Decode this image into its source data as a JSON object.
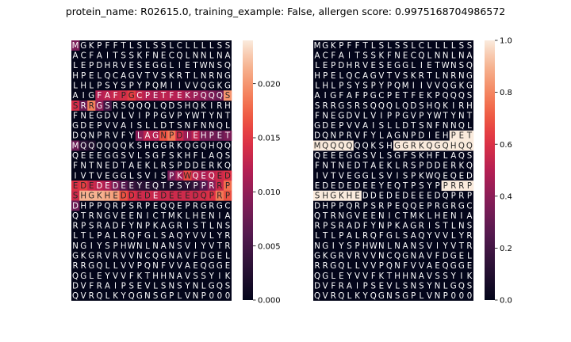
{
  "chart_data": {
    "type": "heatmap",
    "title": "protein_name: R02615.0, training_example: False, allergen score: 0.9975168704986572",
    "colormap": "rocket",
    "sequence_rows": [
      "MGKPFFTLSLSSLCLLLLSS",
      "ACFAITSSKFNECQLNNLNA",
      "LEPDHRVESEGGLIETWNSQ",
      "HPELQCAGVTVSKRTLNRNG",
      "LHLPSYSPYPQMIIVVQGKG",
      "AIGFAFPGCPETFEKPQQQS",
      "SRRGSRSQQQLQDSHQKIRH",
      "FNEGDVLVIPPGVPYWTYNT",
      "GDEPVVAISLLDTSNFNNQL",
      "DQNPRVFYLAGNPDIEHPET",
      "MQQQQQQKSHGGRKQGQHQQ",
      "QEEEGGSVLSGFSKHFLAQS",
      "FNTNEDTAEKLRSPDDERKQ",
      "IVTVEGGLSVISPKWQEQED",
      "EDEDEDEEYEQTPSYPPRRP",
      "SHGKHEDDEDEDEEEDQPRP",
      "DHPPQRPSRPEQQEPRGRGC",
      "QTRNGVEENICTMKLHENIA",
      "RPSRADFYNPKAGRISTLNS",
      "LTLPALRQFGLSAQYVVLYR",
      "NGIYSPHWNLNANSVIYVTR",
      "GKGRVRVVNCQGNAVFDGEL",
      "RRGQLLVVPQNFVVAEQGGE",
      "QGLEYVVFKTHHNAVSSYIK",
      "DVFRAIPSEVLSNSYNLGQS",
      "QVRQLKYQGNSGPLVNP000"
    ],
    "left_panel": {
      "colorbar_ticks": [
        0.0,
        0.005,
        0.01,
        0.015,
        0.02
      ],
      "colorbar_tick_labels": [
        "0.000",
        "0.005",
        "0.010",
        "0.015",
        "0.020"
      ],
      "vmin": 0.0,
      "vmax": 0.024,
      "highlights": [
        {
          "row": 0,
          "col": 0,
          "value": 0.0085
        },
        {
          "row": 5,
          "col": 3,
          "value": 0.012
        },
        {
          "row": 5,
          "col": 4,
          "value": 0.0125
        },
        {
          "row": 5,
          "col": 5,
          "value": 0.0132
        },
        {
          "row": 5,
          "col": 6,
          "value": 0.014
        },
        {
          "row": 5,
          "col": 7,
          "value": 0.0155
        },
        {
          "row": 5,
          "col": 8,
          "value": 0.013
        },
        {
          "row": 5,
          "col": 9,
          "value": 0.012
        },
        {
          "row": 5,
          "col": 10,
          "value": 0.0115
        },
        {
          "row": 5,
          "col": 11,
          "value": 0.0125
        },
        {
          "row": 5,
          "col": 12,
          "value": 0.0122
        },
        {
          "row": 5,
          "col": 13,
          "value": 0.012
        },
        {
          "row": 5,
          "col": 14,
          "value": 0.011
        },
        {
          "row": 5,
          "col": 15,
          "value": 0.0105
        },
        {
          "row": 5,
          "col": 16,
          "value": 0.0095
        },
        {
          "row": 5,
          "col": 17,
          "value": 0.0085
        },
        {
          "row": 5,
          "col": 18,
          "value": 0.0075
        },
        {
          "row": 5,
          "col": 19,
          "value": 0.02
        },
        {
          "row": 6,
          "col": 0,
          "value": 0.014
        },
        {
          "row": 6,
          "col": 1,
          "value": 0.0075
        },
        {
          "row": 6,
          "col": 2,
          "value": 0.019
        },
        {
          "row": 6,
          "col": 3,
          "value": 0.0095
        },
        {
          "row": 6,
          "col": 4,
          "value": 0.0045
        },
        {
          "row": 9,
          "col": 8,
          "value": 0.0095
        },
        {
          "row": 9,
          "col": 9,
          "value": 0.0125
        },
        {
          "row": 9,
          "col": 10,
          "value": 0.012
        },
        {
          "row": 9,
          "col": 11,
          "value": 0.0165
        },
        {
          "row": 9,
          "col": 12,
          "value": 0.0185
        },
        {
          "row": 9,
          "col": 13,
          "value": 0.0135
        },
        {
          "row": 9,
          "col": 14,
          "value": 0.0105
        },
        {
          "row": 9,
          "col": 15,
          "value": 0.0125
        },
        {
          "row": 9,
          "col": 16,
          "value": 0.0085
        },
        {
          "row": 9,
          "col": 17,
          "value": 0.008
        },
        {
          "row": 9,
          "col": 18,
          "value": 0.0075
        },
        {
          "row": 9,
          "col": 19,
          "value": 0.0085
        },
        {
          "row": 10,
          "col": 0,
          "value": 0.0075
        },
        {
          "row": 10,
          "col": 1,
          "value": 0.003
        },
        {
          "row": 10,
          "col": 2,
          "value": 0.002
        },
        {
          "row": 13,
          "col": 12,
          "value": 0.0085
        },
        {
          "row": 13,
          "col": 13,
          "value": 0.011
        },
        {
          "row": 13,
          "col": 14,
          "value": 0.016
        },
        {
          "row": 13,
          "col": 15,
          "value": 0.0125
        },
        {
          "row": 13,
          "col": 16,
          "value": 0.0115
        },
        {
          "row": 13,
          "col": 17,
          "value": 0.0125
        },
        {
          "row": 13,
          "col": 18,
          "value": 0.0135
        },
        {
          "row": 13,
          "col": 19,
          "value": 0.0145
        },
        {
          "row": 14,
          "col": 0,
          "value": 0.0145
        },
        {
          "row": 14,
          "col": 1,
          "value": 0.0155
        },
        {
          "row": 14,
          "col": 2,
          "value": 0.0135
        },
        {
          "row": 14,
          "col": 3,
          "value": 0.0125
        },
        {
          "row": 14,
          "col": 4,
          "value": 0.0115
        },
        {
          "row": 14,
          "col": 5,
          "value": 0.0085
        },
        {
          "row": 14,
          "col": 6,
          "value": 0.006
        },
        {
          "row": 14,
          "col": 7,
          "value": 0.004
        },
        {
          "row": 14,
          "col": 8,
          "value": 0.003
        },
        {
          "row": 14,
          "col": 9,
          "value": 0.0025
        },
        {
          "row": 14,
          "col": 10,
          "value": 0.002
        },
        {
          "row": 14,
          "col": 11,
          "value": 0.0015
        },
        {
          "row": 14,
          "col": 12,
          "value": 0.0015
        },
        {
          "row": 14,
          "col": 13,
          "value": 0.002
        },
        {
          "row": 14,
          "col": 14,
          "value": 0.0025
        },
        {
          "row": 14,
          "col": 15,
          "value": 0.0035
        },
        {
          "row": 14,
          "col": 16,
          "value": 0.006
        },
        {
          "row": 14,
          "col": 17,
          "value": 0.0095
        },
        {
          "row": 14,
          "col": 18,
          "value": 0.0135
        },
        {
          "row": 14,
          "col": 19,
          "value": 0.018
        },
        {
          "row": 15,
          "col": 0,
          "value": 0.0135
        },
        {
          "row": 15,
          "col": 1,
          "value": 0.0215
        },
        {
          "row": 15,
          "col": 2,
          "value": 0.0215
        },
        {
          "row": 15,
          "col": 3,
          "value": 0.0215
        },
        {
          "row": 15,
          "col": 4,
          "value": 0.021
        },
        {
          "row": 15,
          "col": 5,
          "value": 0.0205
        },
        {
          "row": 15,
          "col": 6,
          "value": 0.0165
        },
        {
          "row": 15,
          "col": 7,
          "value": 0.0145
        },
        {
          "row": 15,
          "col": 8,
          "value": 0.0135
        },
        {
          "row": 15,
          "col": 9,
          "value": 0.0135
        },
        {
          "row": 15,
          "col": 10,
          "value": 0.013
        },
        {
          "row": 15,
          "col": 11,
          "value": 0.0135
        },
        {
          "row": 15,
          "col": 12,
          "value": 0.0135
        },
        {
          "row": 15,
          "col": 13,
          "value": 0.0135
        },
        {
          "row": 15,
          "col": 14,
          "value": 0.0135
        },
        {
          "row": 15,
          "col": 15,
          "value": 0.0135
        },
        {
          "row": 15,
          "col": 16,
          "value": 0.014
        },
        {
          "row": 15,
          "col": 17,
          "value": 0.0145
        },
        {
          "row": 15,
          "col": 18,
          "value": 0.0185
        },
        {
          "row": 15,
          "col": 19,
          "value": 0.0165
        },
        {
          "row": 16,
          "col": 0,
          "value": 0.0075
        }
      ]
    },
    "right_panel": {
      "colorbar_ticks": [
        0.0,
        0.2,
        0.4,
        0.6,
        0.8,
        1.0
      ],
      "colorbar_tick_labels": [
        "0.0",
        "0.2",
        "0.4",
        "0.6",
        "0.8",
        "1.0"
      ],
      "vmin": 0.0,
      "vmax": 1.0,
      "highlights": [
        {
          "row": 9,
          "col": 17,
          "value": 1.0
        },
        {
          "row": 9,
          "col": 18,
          "value": 1.0
        },
        {
          "row": 9,
          "col": 19,
          "value": 1.0
        },
        {
          "row": 10,
          "col": 0,
          "value": 1.0
        },
        {
          "row": 10,
          "col": 1,
          "value": 1.0
        },
        {
          "row": 10,
          "col": 2,
          "value": 1.0
        },
        {
          "row": 10,
          "col": 3,
          "value": 1.0
        },
        {
          "row": 10,
          "col": 4,
          "value": 1.0
        },
        {
          "row": 10,
          "col": 10,
          "value": 1.0
        },
        {
          "row": 10,
          "col": 11,
          "value": 1.0
        },
        {
          "row": 10,
          "col": 12,
          "value": 1.0
        },
        {
          "row": 10,
          "col": 13,
          "value": 1.0
        },
        {
          "row": 10,
          "col": 14,
          "value": 1.0
        },
        {
          "row": 10,
          "col": 15,
          "value": 1.0
        },
        {
          "row": 10,
          "col": 16,
          "value": 1.0
        },
        {
          "row": 10,
          "col": 17,
          "value": 1.0
        },
        {
          "row": 10,
          "col": 18,
          "value": 1.0
        },
        {
          "row": 10,
          "col": 19,
          "value": 1.0
        },
        {
          "row": 14,
          "col": 16,
          "value": 1.0
        },
        {
          "row": 14,
          "col": 17,
          "value": 1.0
        },
        {
          "row": 14,
          "col": 18,
          "value": 1.0
        },
        {
          "row": 14,
          "col": 19,
          "value": 1.0
        },
        {
          "row": 15,
          "col": 0,
          "value": 1.0
        },
        {
          "row": 15,
          "col": 1,
          "value": 1.0
        },
        {
          "row": 15,
          "col": 2,
          "value": 1.0
        },
        {
          "row": 15,
          "col": 3,
          "value": 1.0
        },
        {
          "row": 15,
          "col": 4,
          "value": 1.0
        },
        {
          "row": 15,
          "col": 5,
          "value": 1.0
        }
      ]
    }
  }
}
